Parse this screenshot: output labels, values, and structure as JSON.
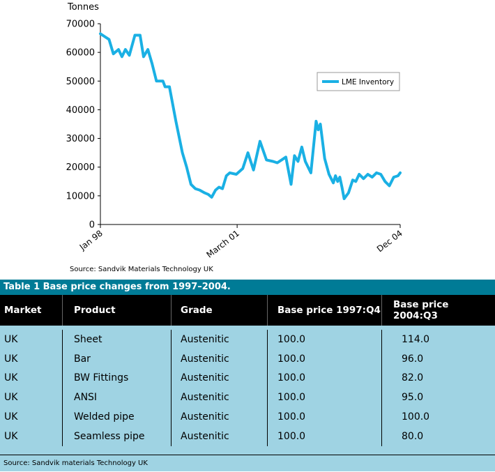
{
  "chart_data": {
    "type": "line",
    "ylabel": "Tonnes",
    "ylim": [
      0,
      70000
    ],
    "yticks": [
      "0",
      "10000",
      "20000",
      "30000",
      "40000",
      "50000",
      "60000",
      "70000"
    ],
    "xticks": [
      "Jan 98",
      "March 01",
      "Dec 04"
    ],
    "legend": {
      "position": "top-right",
      "label": "LME Inventory"
    },
    "grid": false,
    "color": "#1ab0e4",
    "series": [
      {
        "name": "LME Inventory",
        "x": [
          1998.0,
          1998.1,
          1998.2,
          1998.3,
          1998.42,
          1998.5,
          1998.58,
          1998.67,
          1998.8,
          1998.92,
          1999.0,
          1999.1,
          1999.2,
          1999.3,
          1999.45,
          1999.5,
          1999.6,
          1999.75,
          1999.9,
          2000.0,
          2000.1,
          2000.2,
          2000.3,
          2000.42,
          2000.5,
          2000.58,
          2000.67,
          2000.75,
          2000.83,
          2000.92,
          2001.0,
          2001.15,
          2001.3,
          2001.42,
          2001.55,
          2001.7,
          2001.85,
          2002.0,
          2002.1,
          2002.2,
          2002.3,
          2002.42,
          2002.5,
          2002.58,
          2002.67,
          2002.75,
          2002.88,
          2003.0,
          2003.05,
          2003.1,
          2003.2,
          2003.3,
          2003.4,
          2003.45,
          2003.5,
          2003.55,
          2003.6,
          2003.65,
          2003.75,
          2003.85,
          2003.92,
          2004.0,
          2004.1,
          2004.2,
          2004.3,
          2004.4,
          2004.5,
          2004.6,
          2004.7,
          2004.8,
          2004.9,
          2004.95
        ],
        "values": [
          66500,
          65500,
          64500,
          59500,
          61000,
          58500,
          61000,
          59000,
          66000,
          66000,
          58500,
          61000,
          56000,
          50000,
          50000,
          48000,
          48000,
          36000,
          25000,
          20000,
          14000,
          12500,
          12000,
          11000,
          10500,
          9500,
          12000,
          13000,
          12500,
          17000,
          18000,
          17500,
          19500,
          25000,
          19000,
          29000,
          22500,
          22000,
          21500,
          22500,
          23500,
          14000,
          24000,
          22000,
          27000,
          22000,
          18000,
          36000,
          33000,
          35000,
          23000,
          17500,
          14500,
          17000,
          15000,
          16500,
          13000,
          9000,
          11000,
          15500,
          15000,
          17500,
          16000,
          17500,
          16500,
          18000,
          17500,
          15000,
          13500,
          16500,
          17000,
          18000
        ]
      }
    ]
  },
  "source_chart": "Source: Sandvik Materials Technology UK",
  "table": {
    "title": "Table 1 Base price changes from 1997–2004.",
    "headers": [
      "Market",
      "Product",
      "Grade",
      "Base price 1997:Q4",
      "Base price 2004:Q3"
    ],
    "rows": [
      [
        "UK",
        "Sheet",
        "Austenitic",
        "100.0",
        "114.0"
      ],
      [
        "UK",
        "Bar",
        "Austenitic",
        "100.0",
        "96.0"
      ],
      [
        "UK",
        "BW Fittings",
        "Austenitic",
        "100.0",
        "82.0"
      ],
      [
        "UK",
        "ANSI",
        "Austenitic",
        "100.0",
        "95.0"
      ],
      [
        "UK",
        "Welded pipe",
        "Austenitic",
        "100.0",
        "100.0"
      ],
      [
        "UK",
        "Seamless pipe",
        "Austenitic",
        "100.0",
        "80.0"
      ]
    ],
    "source": "Source: Sandvik materials Technology UK"
  }
}
